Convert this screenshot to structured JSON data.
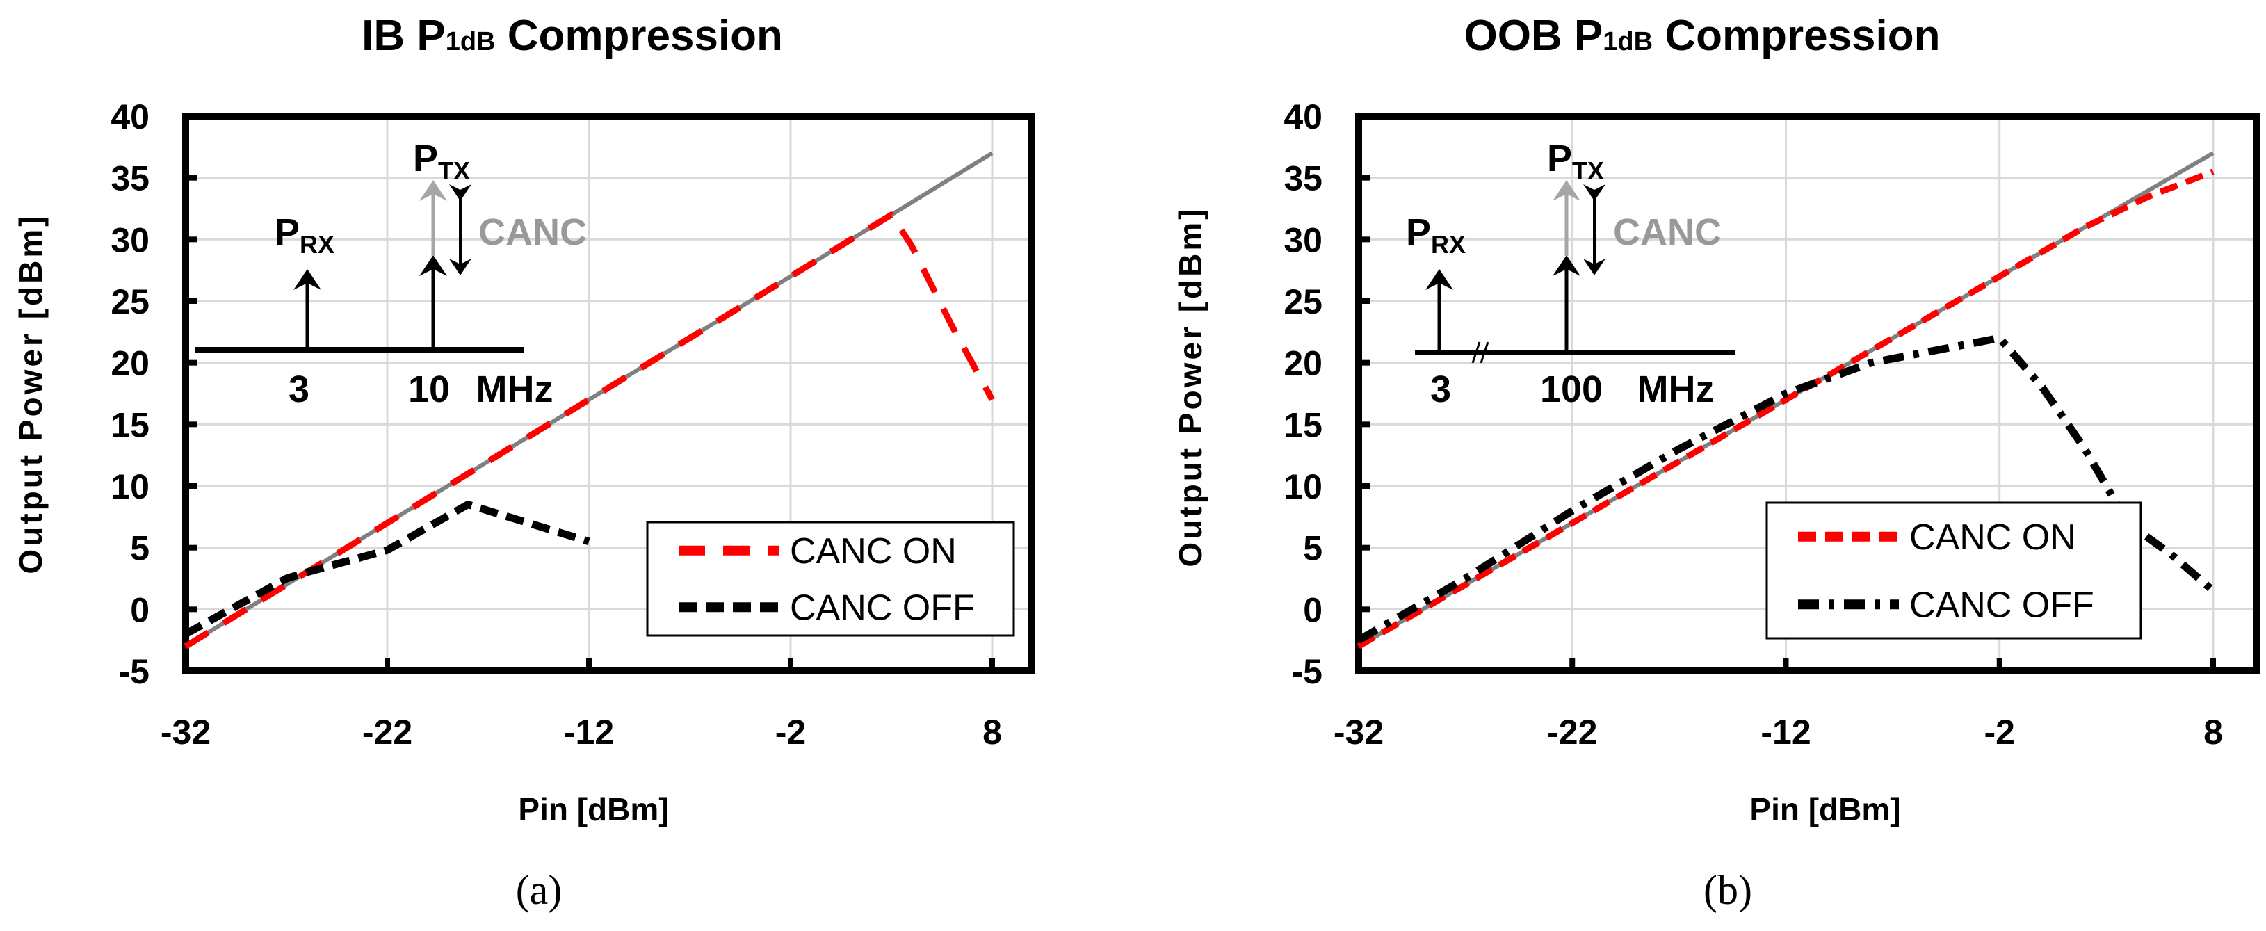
{
  "chart_data": [
    {
      "type": "line",
      "panel_label": "(a)",
      "title": "IB P",
      "title_sub": "1dB",
      "title_rest": " Compression",
      "xlabel": "Pin [dBm]",
      "ylabel": "Output Power [dBm]",
      "xlim": [
        -32,
        10
      ],
      "ylim": [
        -5,
        40
      ],
      "xticks": [
        -32,
        -22,
        -12,
        -2,
        8
      ],
      "yticks": [
        -5,
        0,
        5,
        10,
        15,
        20,
        25,
        30,
        35,
        40
      ],
      "grid": true,
      "legend_position": "bottom-right",
      "series": [
        {
          "name": "Ideal",
          "in_legend": false,
          "color": "#808080",
          "style": "solid",
          "points": [
            [
              -32,
              -3
            ],
            [
              8,
              37
            ]
          ]
        },
        {
          "name": "CANC ON",
          "in_legend": true,
          "color": "#ff0000",
          "style": "long-dash",
          "points": [
            [
              -32,
              -3
            ],
            [
              -22,
              7
            ],
            [
              -12,
              17
            ],
            [
              -2,
              27
            ],
            [
              3,
              32
            ],
            [
              4,
              29.5
            ],
            [
              6,
              23
            ],
            [
              8,
              17
            ]
          ]
        },
        {
          "name": "CANC OFF",
          "in_legend": true,
          "color": "#000000",
          "style": "dash",
          "points": [
            [
              -32,
              -2
            ],
            [
              -27,
              2.5
            ],
            [
              -26,
              3
            ],
            [
              -22,
              4.8
            ],
            [
              -18,
              8.5
            ],
            [
              -12,
              5.5
            ]
          ]
        }
      ],
      "inset": {
        "p": "P",
        "rx": "RX",
        "tx": "TX",
        "canc": "CANC",
        "f1": "3",
        "f2": "10",
        "unit": "MHz"
      }
    },
    {
      "type": "line",
      "panel_label": "(b)",
      "title": "OOB P",
      "title_sub": "1dB",
      "title_rest": " Compression",
      "xlabel": "Pin [dBm]",
      "ylabel": "Output Power [dBm]",
      "xlim": [
        -32,
        10
      ],
      "ylim": [
        -5,
        40
      ],
      "xticks": [
        -32,
        -22,
        -12,
        -2,
        8
      ],
      "yticks": [
        -5,
        0,
        5,
        10,
        15,
        20,
        25,
        30,
        35,
        40
      ],
      "grid": true,
      "legend_position": "bottom-right",
      "series": [
        {
          "name": "Ideal",
          "in_legend": false,
          "color": "#808080",
          "style": "solid",
          "points": [
            [
              -32,
              -3
            ],
            [
              8,
              37
            ]
          ]
        },
        {
          "name": "CANC ON",
          "in_legend": true,
          "color": "#ff0000",
          "style": "dash",
          "points": [
            [
              -32,
              -3
            ],
            [
              -22,
              7
            ],
            [
              -12,
              17
            ],
            [
              -2,
              27
            ],
            [
              2,
              31
            ],
            [
              5,
              33.5
            ],
            [
              8,
              35.5
            ]
          ]
        },
        {
          "name": "CANC OFF",
          "in_legend": true,
          "color": "#000000",
          "style": "dash-dot",
          "points": [
            [
              -32,
              -2.5
            ],
            [
              -27,
              2.5
            ],
            [
              -22,
              8
            ],
            [
              -17,
              13
            ],
            [
              -12,
              17.5
            ],
            [
              -8,
              20
            ],
            [
              -2,
              22
            ],
            [
              0,
              18
            ],
            [
              2,
              13
            ],
            [
              4,
              7
            ],
            [
              6,
              4.5
            ],
            [
              8,
              1.5
            ]
          ]
        }
      ],
      "inset": {
        "p": "P",
        "rx": "RX",
        "tx": "TX",
        "canc": "CANC",
        "f1": "3",
        "f2": "100",
        "unit": "MHz"
      }
    }
  ]
}
